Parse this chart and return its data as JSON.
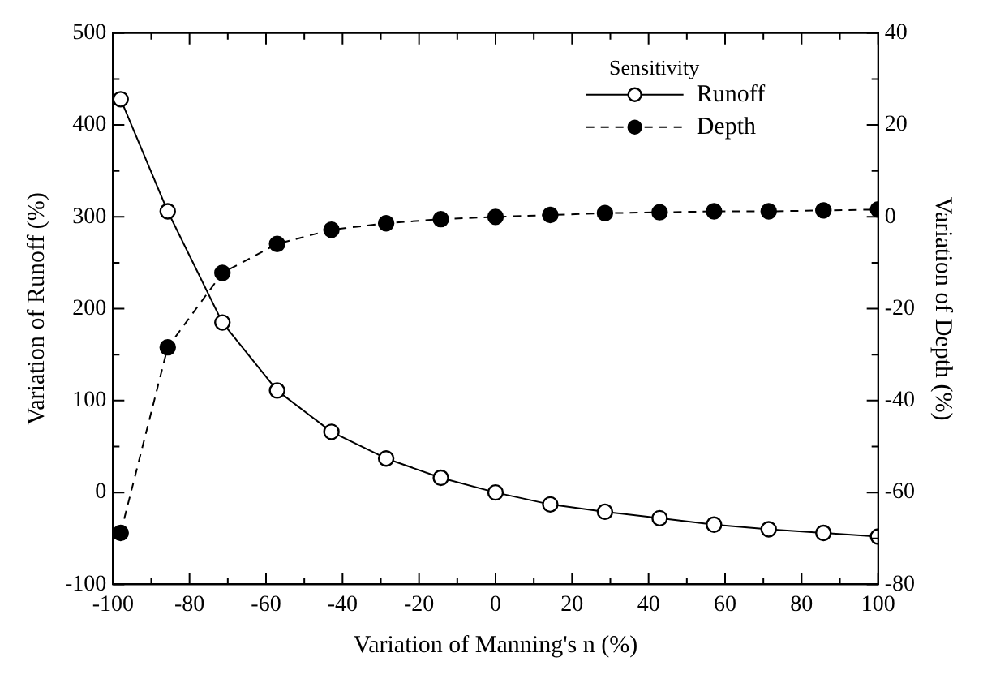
{
  "chart_data": {
    "type": "line",
    "xlabel": "Variation of Manning's n (%)",
    "ylabel": "Variation of Runoff (%)",
    "y2label": "Variation of Depth (%)",
    "legend_title": "Sensitivity",
    "legend": "top right",
    "grid": false,
    "marker": "circle",
    "x": [
      -98,
      -85.7,
      -71.4,
      -57.1,
      -42.9,
      -28.6,
      -14.3,
      0,
      14.3,
      28.6,
      42.9,
      57.1,
      71.4,
      85.7,
      100
    ],
    "series": [
      {
        "name": "Runoff",
        "color": "#000000",
        "line_style": "solid",
        "values": [
          428,
          306,
          185,
          111,
          66,
          37,
          16,
          0,
          -13,
          -21,
          -28,
          -35,
          -40,
          -44,
          -48
        ]
      },
      {
        "name": "Depth",
        "color": "#000000",
        "line_style": "dashed",
        "axis": "y2",
        "values": [
          -68.8,
          -28.4,
          -12.2,
          -5.9,
          -2.8,
          -1.4,
          -0.5,
          0,
          0.4,
          0.8,
          1,
          1.2,
          1.2,
          1.4,
          1.6
        ]
      }
    ],
    "xlim": [
      -100,
      100
    ],
    "xticks": [
      -100,
      {
        "value": -90,
        "label": null
      },
      -80,
      {
        "value": -70,
        "label": null
      },
      -60,
      {
        "value": -50,
        "label": null
      },
      -40,
      {
        "value": -30,
        "label": null
      },
      -20,
      {
        "value": -10,
        "label": null
      },
      0,
      {
        "value": 10,
        "label": null
      },
      20,
      {
        "value": 30,
        "label": null
      },
      40,
      {
        "value": 50,
        "label": null
      },
      60,
      {
        "value": 70,
        "label": null
      },
      80,
      {
        "value": 90,
        "label": null
      },
      100
    ],
    "ylim": [
      -100,
      500
    ],
    "yticks": [
      -100,
      {
        "value": -50,
        "label": null
      },
      0,
      {
        "value": 50,
        "label": null
      },
      100,
      {
        "value": 150,
        "label": null
      },
      200,
      {
        "value": 250,
        "label": null
      },
      300,
      {
        "value": 350,
        "label": null
      },
      400,
      {
        "value": 450,
        "label": null
      },
      500
    ],
    "y2lim": [
      -80,
      40
    ],
    "y2ticks": [
      -80,
      {
        "value": -70,
        "label": null
      },
      -60,
      {
        "value": -50,
        "label": null
      },
      -40,
      {
        "value": -30,
        "label": null
      },
      -20,
      {
        "value": -10,
        "label": null
      },
      0,
      {
        "value": 10,
        "label": null
      },
      20,
      {
        "value": 30,
        "label": null
      },
      40
    ]
  }
}
